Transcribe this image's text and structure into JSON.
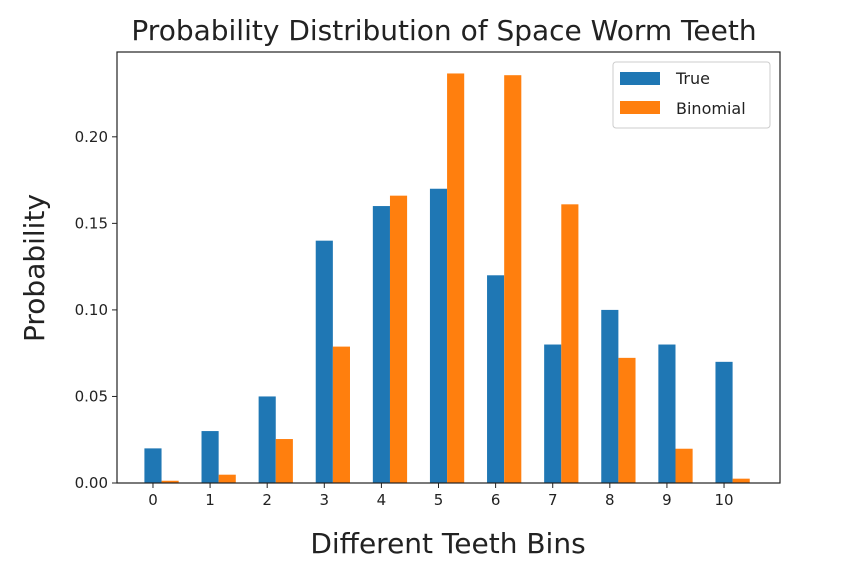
{
  "chart_data": {
    "type": "bar",
    "title": "Probability Distribution of Space Worm Teeth",
    "xlabel": "Different Teeth Bins",
    "ylabel": "Probability",
    "categories": [
      "0",
      "1",
      "2",
      "3",
      "4",
      "5",
      "6",
      "7",
      "8",
      "9",
      "10"
    ],
    "series": [
      {
        "name": "True",
        "color": "#1f77b4",
        "values": [
          0.02,
          0.03,
          0.05,
          0.14,
          0.16,
          0.17,
          0.12,
          0.08,
          0.1,
          0.08,
          0.07
        ]
      },
      {
        "name": "Binomial",
        "color": "#ff7f0e",
        "values": [
          0.0013,
          0.0048,
          0.0254,
          0.0788,
          0.166,
          0.2366,
          0.2356,
          0.161,
          0.0723,
          0.0198,
          0.0025
        ]
      }
    ],
    "yticks": [
      "0.00",
      "0.05",
      "0.10",
      "0.15",
      "0.20"
    ],
    "ylim": [
      0,
      0.249
    ],
    "xlim": [
      -0.63,
      10.98
    ],
    "grid": false,
    "legend_position": "top-right"
  }
}
